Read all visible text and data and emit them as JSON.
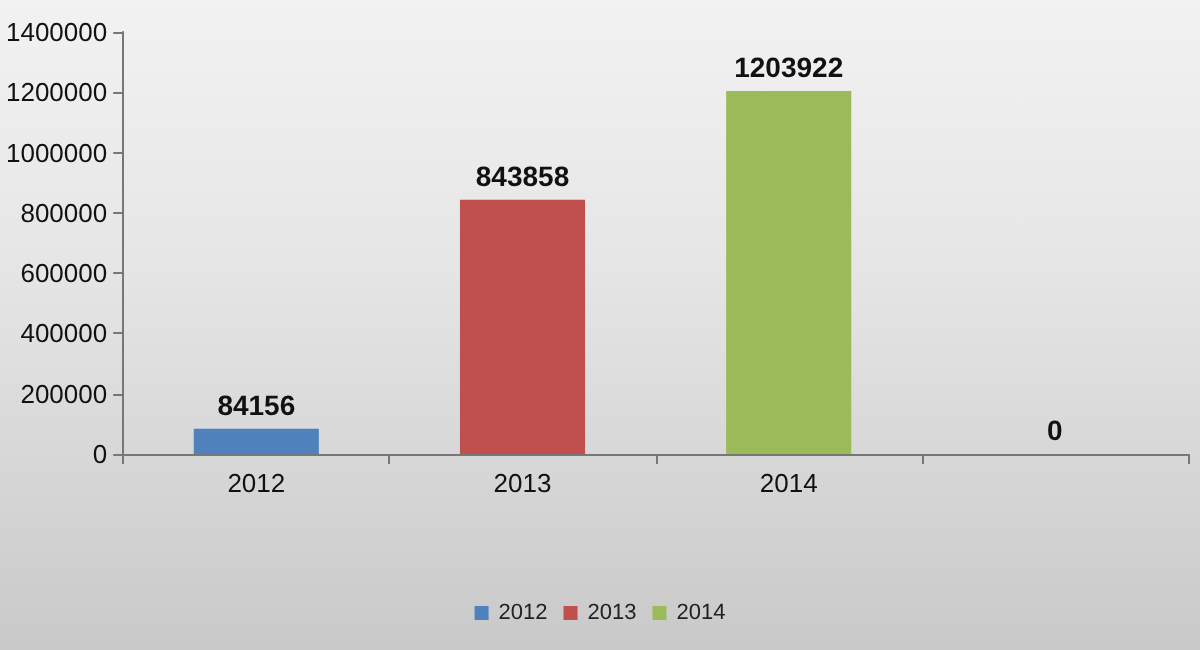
{
  "chart_data": {
    "type": "bar",
    "categories": [
      "2012",
      "2013",
      "2014",
      null
    ],
    "series": [
      {
        "name": "2012",
        "color": "#4f81bd",
        "values": [
          84156,
          null,
          null,
          null
        ]
      },
      {
        "name": "2013",
        "color": "#c0504d",
        "values": [
          null,
          843858,
          null,
          null
        ]
      },
      {
        "name": "2014",
        "color": "#9bbb59",
        "values": [
          null,
          null,
          1203922,
          0
        ]
      }
    ],
    "ylim": [
      0,
      1400000
    ],
    "yticks": [
      0,
      200000,
      400000,
      600000,
      800000,
      1000000,
      1200000,
      1400000
    ],
    "data_labels": true,
    "legend": "bottom",
    "grid": false
  }
}
